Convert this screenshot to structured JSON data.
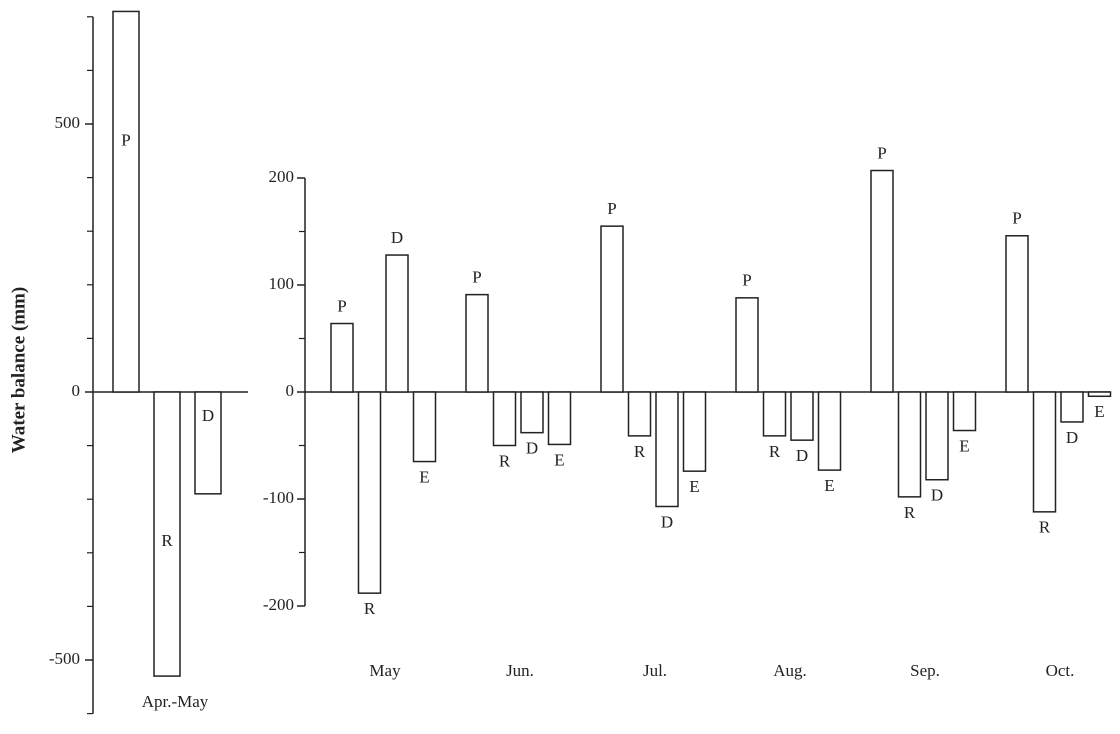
{
  "chart_data": [
    {
      "type": "bar",
      "ylabel": "Water balance (mm)",
      "categories": [
        "Apr.-May"
      ],
      "series": [
        {
          "name": "P",
          "color": "#ffffff",
          "values": [
            710
          ]
        },
        {
          "name": "R",
          "color": "#ffffff",
          "values": [
            -530
          ]
        },
        {
          "name": "D",
          "color": "#ffffff",
          "values": [
            -190
          ]
        }
      ],
      "edgecolor": "#222222",
      "ylim": [
        -600,
        700
      ],
      "yticks": [
        -500,
        0,
        500
      ],
      "yminorticks": [
        -600,
        -400,
        -300,
        -200,
        -100,
        100,
        200,
        300,
        400,
        600,
        700
      ]
    },
    {
      "type": "bar",
      "categories": [
        "May",
        "Jun.",
        "Jul.",
        "Aug.",
        "Sep.",
        "Oct."
      ],
      "series": [
        {
          "name": "P",
          "color": "#ffffff",
          "values": [
            64,
            91,
            155,
            88,
            207,
            146
          ]
        },
        {
          "name": "R",
          "color": "#ffffff",
          "values": [
            -188,
            -50,
            -41,
            -41,
            -98,
            -112
          ]
        },
        {
          "name": "D",
          "color": "#ffffff",
          "values": [
            128,
            -38,
            -107,
            -45,
            -82,
            -28
          ]
        },
        {
          "name": "E",
          "color": "#ffffff",
          "values": [
            -65,
            -49,
            -74,
            -73,
            -36,
            -4
          ]
        }
      ],
      "edgecolor": "#222222",
      "ylim": [
        -200,
        200
      ],
      "yticks": [
        -200,
        -100,
        0,
        100,
        200
      ],
      "yminorticks": [
        -150,
        -50,
        50,
        150
      ]
    }
  ]
}
